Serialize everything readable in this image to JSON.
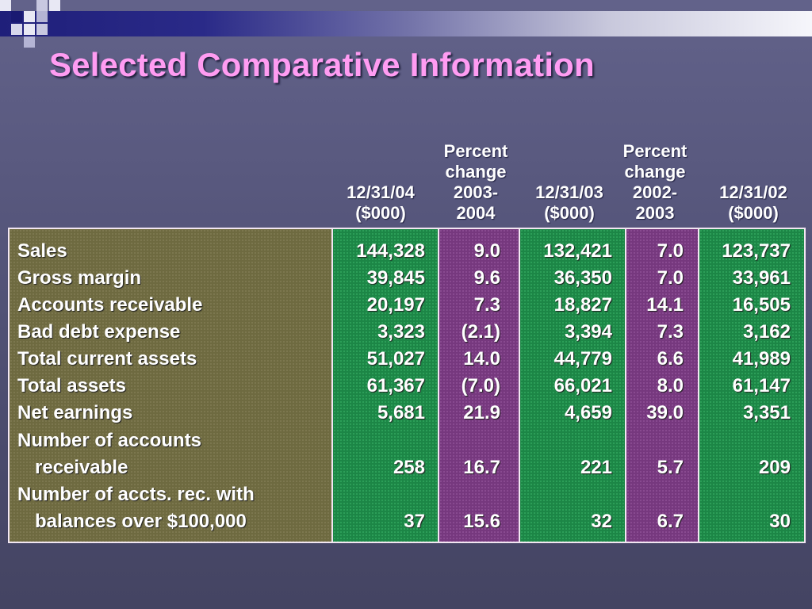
{
  "slide": {
    "title": "Selected Comparative Information"
  },
  "headers": [
    {
      "lines": [
        "12/31/04",
        "($000)"
      ]
    },
    {
      "lines": [
        "Percent",
        "change",
        "2003-",
        "2004"
      ]
    },
    {
      "lines": [
        "12/31/03",
        "($000)"
      ]
    },
    {
      "lines": [
        "Percent",
        "change",
        "2002-",
        "2003"
      ]
    },
    {
      "lines": [
        "12/31/02",
        "($000)"
      ]
    }
  ],
  "rows": [
    {
      "label": "Sales",
      "label2": "",
      "values": [
        "144,328",
        "9.0",
        "132,421",
        "7.0",
        "123,737"
      ]
    },
    {
      "label": "Gross margin",
      "label2": "",
      "values": [
        "39,845",
        "9.6",
        "36,350",
        "7.0",
        "33,961"
      ]
    },
    {
      "label": "Accounts receivable",
      "label2": "",
      "values": [
        "20,197",
        "7.3",
        "18,827",
        "14.1",
        "16,505"
      ]
    },
    {
      "label": "Bad debt expense",
      "label2": "",
      "values": [
        "3,323",
        "(2.1)",
        "3,394",
        "7.3",
        "3,162"
      ]
    },
    {
      "label": "Total current assets",
      "label2": "",
      "values": [
        "51,027",
        "14.0",
        "44,779",
        "6.6",
        "41,989"
      ]
    },
    {
      "label": "Total assets",
      "label2": "",
      "values": [
        "61,367",
        "(7.0)",
        "66,021",
        "8.0",
        "61,147"
      ]
    },
    {
      "label": "Net earnings",
      "label2": "",
      "values": [
        "5,681",
        "21.9",
        "4,659",
        "39.0",
        "3,351"
      ]
    },
    {
      "label": "Number of accounts",
      "label2": "receivable",
      "values": [
        "258",
        "16.7",
        "221",
        "5.7",
        "209"
      ]
    },
    {
      "label": "Number of accts. rec. with",
      "label2": "balances over $100,000",
      "values": [
        "37",
        "15.6",
        "32",
        "6.7",
        "30"
      ]
    }
  ],
  "colors": {
    "title": "#ff9cf2",
    "label_column": "#6e6a40",
    "amount_columns": "#1c8646",
    "percent_columns": "#76387e",
    "border": "#f2e6f2"
  }
}
